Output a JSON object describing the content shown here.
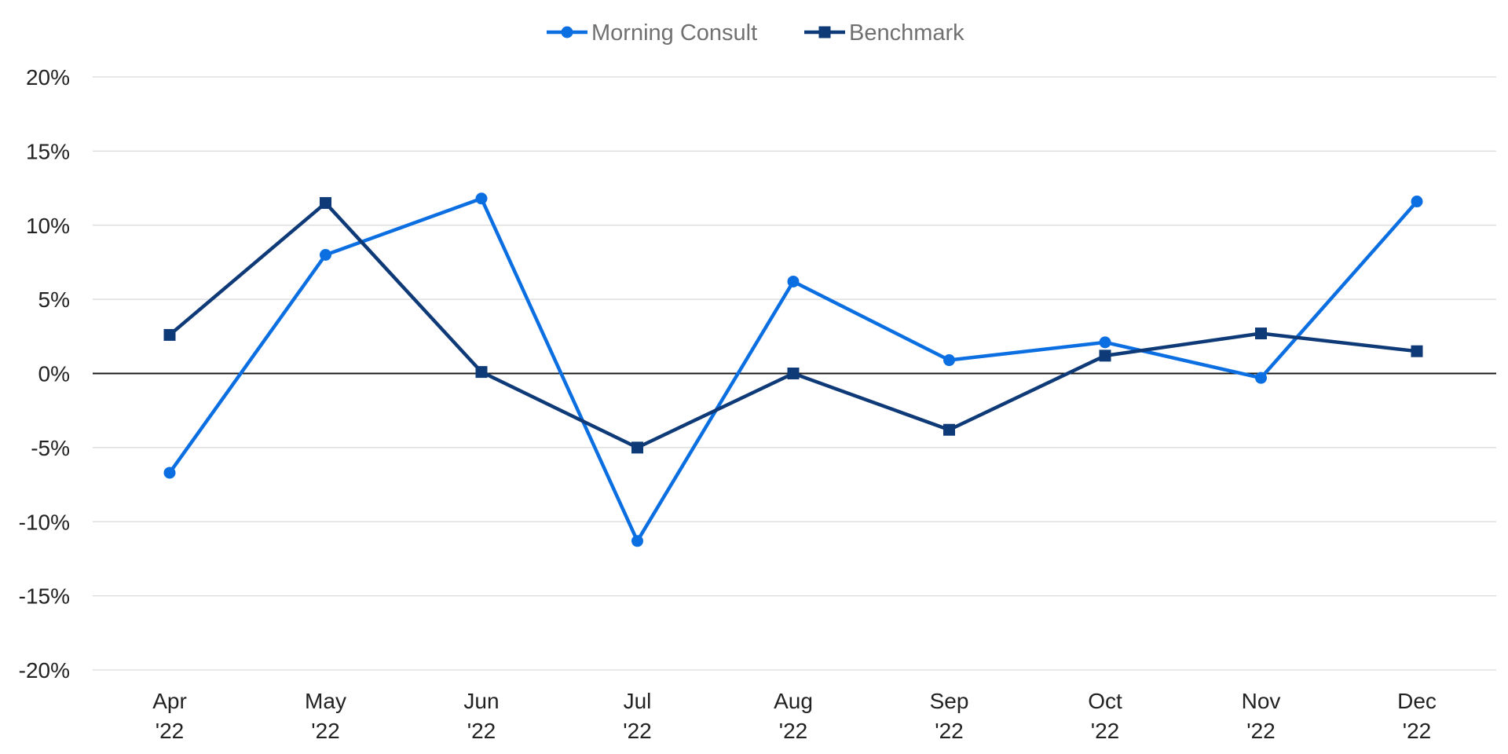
{
  "chart_data": {
    "type": "line",
    "title": "",
    "xlabel": "",
    "ylabel": "",
    "categories": [
      [
        "Apr",
        "'22"
      ],
      [
        "May",
        "'22"
      ],
      [
        "Jun",
        "'22"
      ],
      [
        "Jul",
        "'22"
      ],
      [
        "Aug",
        "'22"
      ],
      [
        "Sep",
        "'22"
      ],
      [
        "Oct",
        "'22"
      ],
      [
        "Nov",
        "'22"
      ],
      [
        "Dec",
        "'22"
      ]
    ],
    "ylim": [
      -20,
      20
    ],
    "yticks": [
      20,
      15,
      10,
      5,
      0,
      -5,
      -10,
      -15,
      -20
    ],
    "ytick_labels": [
      "20%",
      "15%",
      "10%",
      "5%",
      "0%",
      "-5%",
      "-10%",
      "-15%",
      "-20%"
    ],
    "grid": true,
    "legend_position": "top-center",
    "series": [
      {
        "name": "Morning Consult",
        "marker": "circle",
        "color": "#0B6FE2",
        "values": [
          -6.7,
          8.0,
          11.8,
          -11.3,
          6.2,
          0.9,
          2.1,
          -0.3,
          11.6
        ]
      },
      {
        "name": "Benchmark",
        "marker": "square",
        "color": "#0F3A78",
        "values": [
          2.6,
          11.5,
          0.1,
          -5.0,
          0.0,
          -3.8,
          1.2,
          2.7,
          1.5
        ]
      }
    ]
  },
  "colors": {
    "grid": "#D9D9D9",
    "zero_line": "#1A1A1A",
    "tick_text": "#222222",
    "legend_text": "#707070"
  }
}
